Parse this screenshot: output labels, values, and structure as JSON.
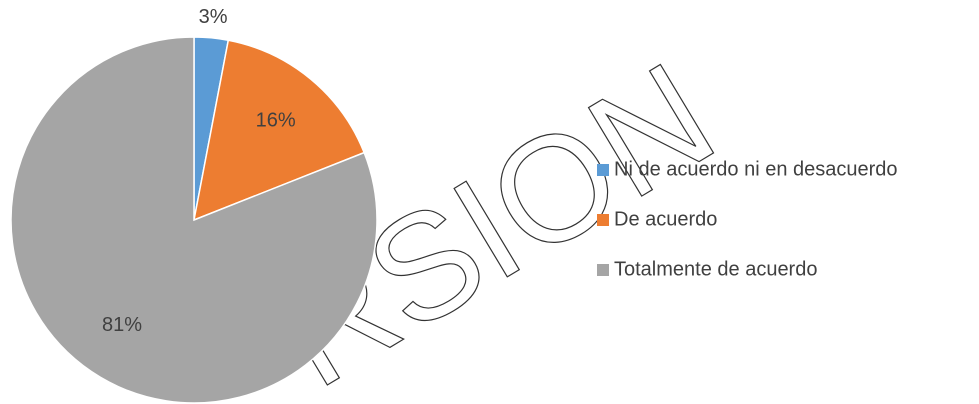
{
  "chart_data": {
    "type": "pie",
    "categories": [
      "Ni de acuerdo ni en desacuerdo",
      "De acuerdo",
      "Totalmente de acuerdo"
    ],
    "values": [
      3,
      16,
      81
    ],
    "value_labels": [
      "3%",
      "16%",
      "81%"
    ],
    "colors": [
      "#5b9bd5",
      "#ed7d31",
      "#a5a5a5"
    ],
    "legend": "right"
  },
  "watermark": "RSION"
}
